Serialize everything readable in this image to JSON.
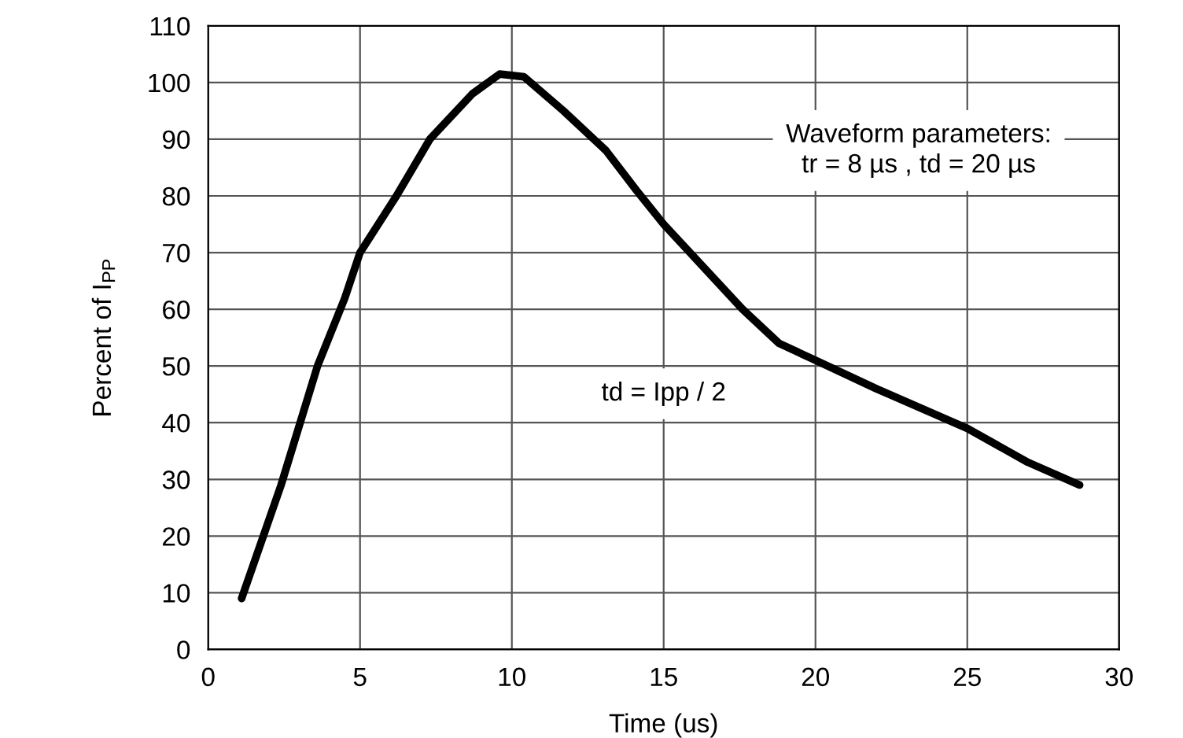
{
  "chart_data": {
    "type": "line",
    "xlabel": "Time (us)",
    "ylabel": "Percent of I$_{PP}$",
    "series": [
      {
        "color": "#000000",
        "x": [
          1.1,
          2.4,
          3.6,
          4.5,
          5.0,
          6.2,
          7.3,
          8.7,
          9.6,
          10.4,
          11.7,
          13.1,
          14.1,
          15.0,
          17.6,
          18.8,
          20.0,
          22.0,
          25.0,
          27.0,
          28.7
        ],
        "values": [
          9,
          29,
          50,
          62,
          70,
          80,
          90,
          98,
          101.5,
          101,
          95,
          88,
          81,
          75,
          60,
          54,
          51,
          46,
          39,
          33,
          29
        ]
      }
    ],
    "xlim": [
      0,
      30
    ],
    "ylim": [
      0,
      110
    ],
    "xticks": [
      0,
      5,
      10,
      15,
      20,
      25,
      30
    ],
    "yticks": [
      0,
      10,
      20,
      30,
      40,
      50,
      60,
      70,
      80,
      90,
      100,
      110
    ],
    "grid": true,
    "marker": "none",
    "line_style": "solid",
    "annotations": [
      "Waveform parameters:\ntr = 8 µs , td = 20 µs",
      "td = Ipp / 2"
    ]
  }
}
